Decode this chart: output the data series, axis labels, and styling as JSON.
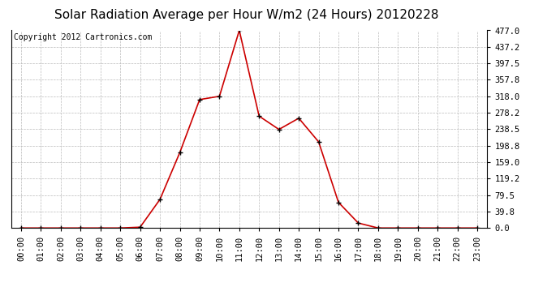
{
  "title": "Solar Radiation Average per Hour W/m2 (24 Hours) 20120228",
  "copyright_text": "Copyright 2012 Cartronics.com",
  "x_labels": [
    "00:00",
    "01:00",
    "02:00",
    "03:00",
    "04:00",
    "05:00",
    "06:00",
    "07:00",
    "08:00",
    "09:00",
    "10:00",
    "11:00",
    "12:00",
    "13:00",
    "14:00",
    "15:00",
    "16:00",
    "17:00",
    "18:00",
    "19:00",
    "20:00",
    "21:00",
    "22:00",
    "23:00"
  ],
  "y_values": [
    0.0,
    0.0,
    0.0,
    0.0,
    0.0,
    0.0,
    2.0,
    69.0,
    182.0,
    310.0,
    318.0,
    477.0,
    270.0,
    238.0,
    265.0,
    208.0,
    62.0,
    12.0,
    0.0,
    0.0,
    0.0,
    0.0,
    0.0,
    0.0
  ],
  "y_ticks": [
    0.0,
    39.8,
    79.5,
    119.2,
    159.0,
    198.8,
    238.5,
    278.2,
    318.0,
    357.8,
    397.5,
    437.2,
    477.0
  ],
  "y_max": 477.0,
  "y_min": 0.0,
  "line_color": "#cc0000",
  "marker_color": "#000000",
  "background_color": "#ffffff",
  "grid_color": "#bbbbbb",
  "title_fontsize": 11,
  "copyright_fontsize": 7,
  "tick_fontsize": 7.5
}
